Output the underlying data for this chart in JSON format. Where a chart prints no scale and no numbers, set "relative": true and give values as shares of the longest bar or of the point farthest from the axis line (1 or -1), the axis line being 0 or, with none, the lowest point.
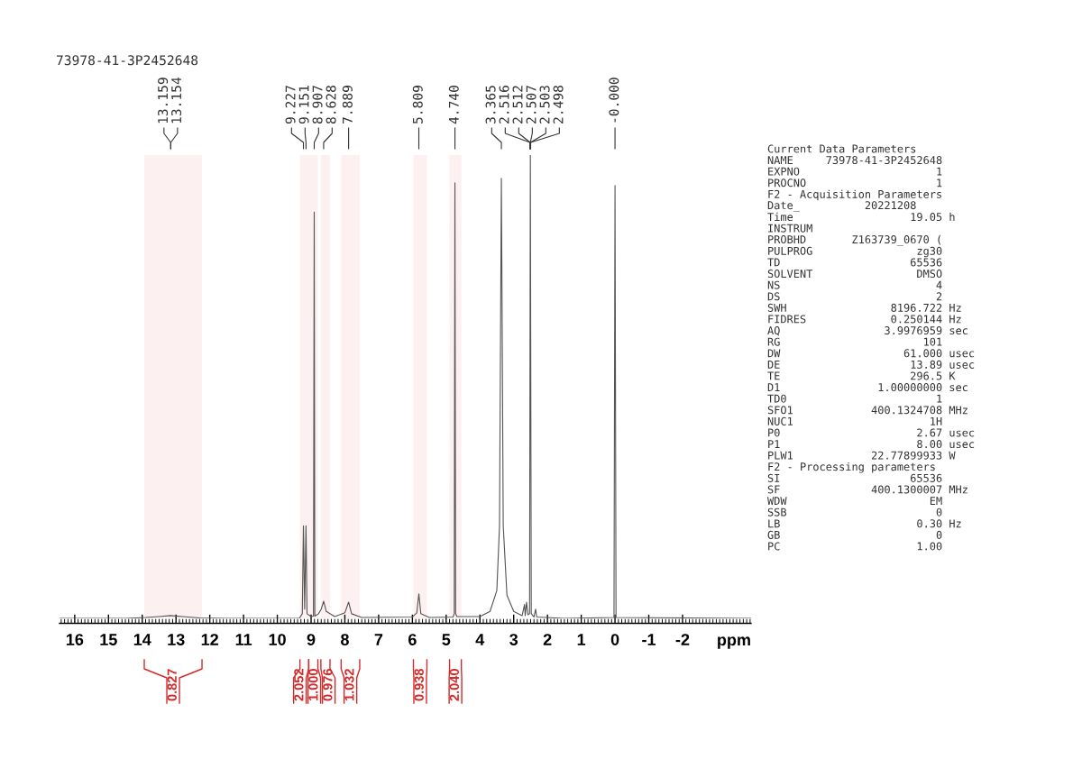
{
  "chart_data": [
    {
      "type": "line",
      "title": "73978-41-3P2452648",
      "xlabel": "ppm",
      "relative": true,
      "color": "#555555",
      "xlim": [
        16.45,
        -4.03
      ],
      "xticks": [
        16,
        15,
        14,
        13,
        12,
        11,
        10,
        9,
        8,
        7,
        6,
        5,
        4,
        3,
        2,
        1,
        0,
        -1,
        -2
      ],
      "x": [
        16.45,
        14.5,
        13.9,
        13.5,
        13.16,
        12.8,
        12.3,
        11.5,
        9.35,
        9.26,
        9.227,
        9.19,
        9.151,
        9.12,
        9.0,
        8.93,
        8.907,
        8.89,
        8.78,
        8.7,
        8.628,
        8.55,
        8.3,
        8.0,
        7.889,
        7.8,
        7.5,
        6.0,
        5.87,
        5.809,
        5.75,
        5.5,
        4.8,
        4.76,
        4.74,
        4.72,
        4.68,
        4.0,
        3.7,
        3.5,
        3.42,
        3.365,
        3.31,
        3.2,
        3.0,
        2.75,
        2.68,
        2.66,
        2.62,
        2.58,
        2.53,
        2.507,
        2.48,
        2.4,
        2.35,
        2.32,
        1.5,
        0.03,
        0.0,
        -0.03,
        -4.03
      ],
      "values": [
        0,
        0,
        0.002,
        0.004,
        0.006,
        0.004,
        0.001,
        0,
        0,
        0.01,
        0.2,
        0.02,
        0.2,
        0.01,
        0.004,
        0.005,
        0.877,
        0.005,
        0.01,
        0.02,
        0.037,
        0.015,
        0.004,
        0.012,
        0.035,
        0.01,
        0.002,
        0.003,
        0.012,
        0.053,
        0.01,
        0.002,
        0.003,
        0.01,
        0.94,
        0.01,
        0.004,
        0.004,
        0.015,
        0.06,
        0.2,
        0.95,
        0.2,
        0.05,
        0.015,
        0.006,
        0.03,
        0.006,
        0.035,
        0.008,
        0.01,
        1.0,
        0.01,
        0.003,
        0.02,
        0.003,
        0,
        0.002,
        0.934,
        0.002,
        0
      ],
      "annotations": [
        {
          "text": "13.159",
          "x": 13.159
        },
        {
          "text": "13.154",
          "x": 13.154
        },
        {
          "text": "9.227",
          "x": 9.227
        },
        {
          "text": "9.151",
          "x": 9.151
        },
        {
          "text": "8.907",
          "x": 8.907
        },
        {
          "text": "8.628",
          "x": 8.628
        },
        {
          "text": "7.889",
          "x": 7.889
        },
        {
          "text": "5.809",
          "x": 5.809
        },
        {
          "text": "4.740",
          "x": 4.74
        },
        {
          "text": "3.365",
          "x": 3.365
        },
        {
          "text": "2.516",
          "x": 2.516
        },
        {
          "text": "2.512",
          "x": 2.512
        },
        {
          "text": "2.507",
          "x": 2.507
        },
        {
          "text": "2.503",
          "x": 2.503
        },
        {
          "text": "2.498",
          "x": 2.498
        },
        {
          "text": "-0.000",
          "x": 0.0
        }
      ],
      "bands": [
        {
          "axis": "x",
          "from": 13.94,
          "to": 12.23,
          "label": "0.827",
          "color": "#d42a2a"
        },
        {
          "axis": "x",
          "from": 9.33,
          "to": 9.07,
          "label": "2.052",
          "color": "#d42a2a"
        },
        {
          "axis": "x",
          "from": 9.07,
          "to": 8.8,
          "label": "1.000",
          "color": "#d42a2a"
        },
        {
          "axis": "x",
          "from": 8.71,
          "to": 8.44,
          "label": "0.976",
          "color": "#d42a2a"
        },
        {
          "axis": "x",
          "from": 8.11,
          "to": 7.56,
          "label": "1.032",
          "color": "#d42a2a"
        },
        {
          "axis": "x",
          "from": 5.97,
          "to": 5.57,
          "label": "0.938",
          "color": "#d42a2a"
        },
        {
          "axis": "x",
          "from": 4.9,
          "to": 4.55,
          "label": "2.040",
          "color": "#d42a2a"
        }
      ]
    },
    {
      "type": "other",
      "annotations": [
        "Current Data Parameters",
        "NAME     73978-41-3P2452648",
        "EXPNO                     1",
        "PROCNO                    1",
        "F2 - Acquisition Parameters",
        "Date_          20221208",
        "Time                  19.05 h",
        "INSTRUM",
        "PROBHD       Z163739_0670 (",
        "PULPROG                zg30",
        "TD                    65536",
        "SOLVENT                DMSO",
        "NS                        4",
        "DS                        2",
        "SWH                8196.722 Hz",
        "FIDRES             0.250144 Hz",
        "AQ                3.9976959 sec",
        "RG                      101",
        "DW                   61.000 usec",
        "DE                    13.89 usec",
        "TE                    296.5 K",
        "D1               1.00000000 sec",
        "TD0                       1",
        "SFO1            400.1324708 MHz",
        "NUC1                     1H",
        "P0                     2.67 usec",
        "P1                     8.00 usec",
        "PLW1            22.77899933 W",
        "F2 - Processing parameters",
        "SI                    65536",
        "SF              400.1300007 MHz",
        "WDW                      EM",
        "SSB                       0",
        "LB                     0.30 Hz",
        "GB                        0",
        "PC                     1.00"
      ]
    }
  ]
}
